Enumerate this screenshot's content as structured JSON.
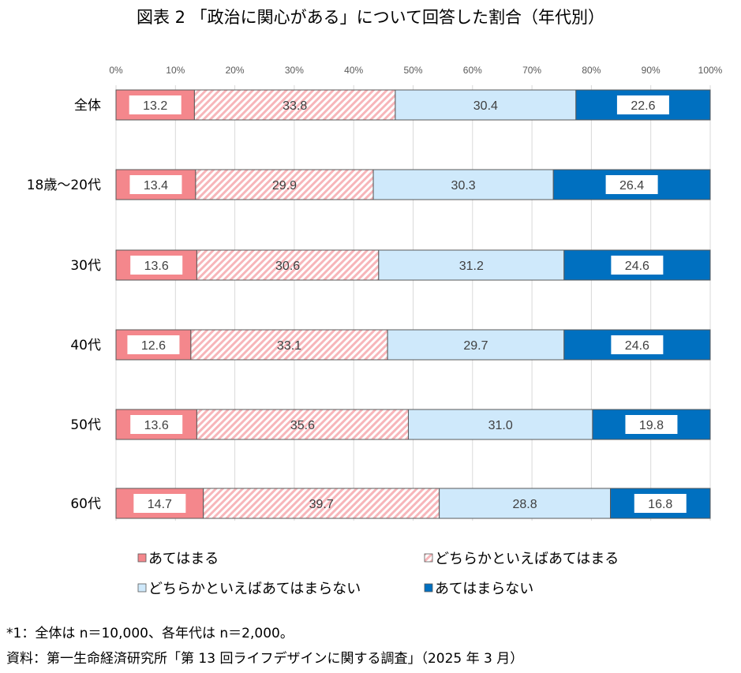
{
  "chart_data": {
    "type": "bar",
    "orientation": "horizontal-stacked-100",
    "title": "図表 2 「政治に関心がある」について回答した割合（年代別）",
    "categories": [
      "全体",
      "18歳～20代",
      "30代",
      "40代",
      "50代",
      "60代"
    ],
    "xlim": [
      0,
      100
    ],
    "xticks": [
      "0%",
      "10%",
      "20%",
      "30%",
      "40%",
      "50%",
      "60%",
      "70%",
      "80%",
      "90%",
      "100%"
    ],
    "grid": true,
    "legend_position": "bottom",
    "series": [
      {
        "name": "あてはまる",
        "values": [
          13.2,
          13.4,
          13.6,
          12.6,
          13.6,
          14.7
        ],
        "color": "#f4878c"
      },
      {
        "name": "どちらかといえばあてはまる",
        "values": [
          33.8,
          29.9,
          30.6,
          33.1,
          35.6,
          39.7
        ],
        "color": "#fbd0d3",
        "pattern": "hatched"
      },
      {
        "name": "どちらかといえばあてはまらない",
        "values": [
          30.4,
          30.3,
          31.2,
          29.7,
          31.0,
          28.8
        ],
        "color": "#cfe9fb"
      },
      {
        "name": "あてはまらない",
        "values": [
          22.6,
          26.4,
          24.6,
          24.6,
          19.8,
          16.8
        ],
        "color": "#0070c0"
      }
    ]
  },
  "notes": [
    "*1：全体は n＝10,000、各年代は n＝2,000。",
    "資料：第一生命経済研究所「第 13 回ライフデザインに関する調査」（2025 年 3 月）"
  ]
}
